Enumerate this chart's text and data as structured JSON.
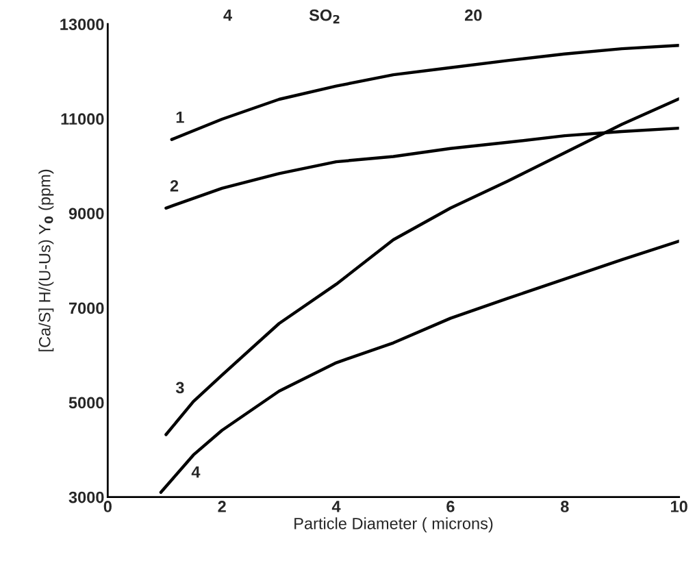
{
  "chart_data": {
    "type": "line",
    "xlabel": "Particle Diameter ( microns)",
    "ylabel": "[Ca/S] H/(U-Us) Y$_{0}$ (ppm)",
    "annotations": [
      "4",
      "SO$_{2}$",
      "20"
    ],
    "xlim": [
      0,
      10
    ],
    "xticks": [
      0,
      2,
      4,
      6,
      8,
      10
    ],
    "ylim": [
      3000,
      13000
    ],
    "yticks": [
      3000,
      5000,
      7000,
      9000,
      11000,
      13000
    ],
    "grid": false,
    "legend": false,
    "marker": "none",
    "line_style": "solid",
    "series": [
      {
        "name": "1",
        "color": "#000000",
        "x": [
          1.12,
          2,
          3,
          4,
          5,
          6,
          7,
          8,
          9,
          10
        ],
        "values": [
          10560,
          10990,
          11410,
          11690,
          11930,
          12080,
          12230,
          12370,
          12480,
          12550
        ]
      },
      {
        "name": "2",
        "color": "#000000",
        "x": [
          1.02,
          2,
          3,
          4,
          5,
          6,
          7,
          8,
          9,
          10
        ],
        "values": [
          9110,
          9530,
          9840,
          10090,
          10200,
          10370,
          10500,
          10640,
          10730,
          10800
        ]
      },
      {
        "name": "3",
        "color": "#000000",
        "x": [
          1.02,
          1.5,
          2,
          3,
          4,
          5,
          6,
          7,
          8,
          9,
          10
        ],
        "values": [
          4320,
          5020,
          5580,
          6670,
          7500,
          8440,
          9110,
          9680,
          10280,
          10880,
          11420
        ]
      },
      {
        "name": "4",
        "color": "#000000",
        "x": [
          0.93,
          1.5,
          2,
          3,
          4,
          5,
          6,
          7,
          8,
          9,
          10
        ],
        "values": [
          3100,
          3890,
          4410,
          5240,
          5840,
          6260,
          6780,
          7200,
          7610,
          8020,
          8410
        ]
      }
    ]
  }
}
